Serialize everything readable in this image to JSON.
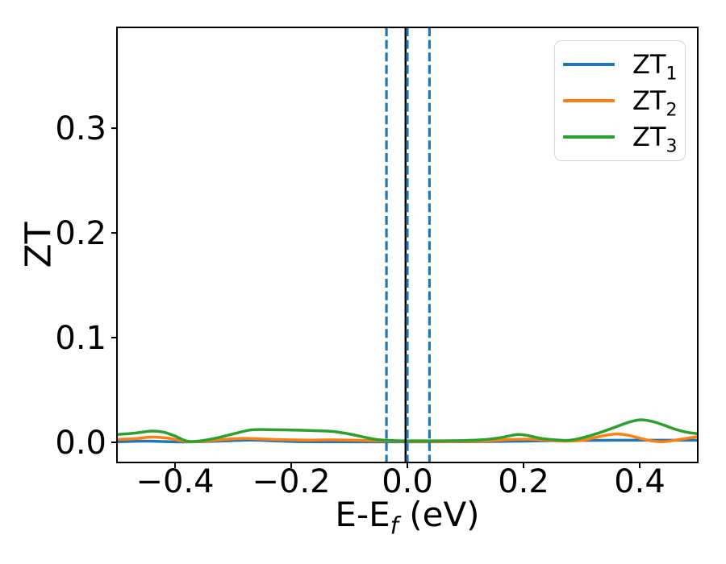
{
  "figure": {
    "background": "#ffffff",
    "text_color": "#000000"
  },
  "chart_data": {
    "type": "line",
    "title": "",
    "ylabel": "ZT",
    "xlabel_parts": {
      "prefix": "E-E",
      "sub": "f",
      "suffix": " (eV)"
    },
    "xlim": [
      -0.5,
      0.5
    ],
    "ylim": [
      -0.0192,
      0.3962
    ],
    "grid": false,
    "x_ticks": [
      {
        "value": -0.4,
        "label": "−0.4"
      },
      {
        "value": -0.2,
        "label": "−0.2"
      },
      {
        "value": 0.0,
        "label": "0.0"
      },
      {
        "value": 0.2,
        "label": "0.2"
      },
      {
        "value": 0.4,
        "label": "0.4"
      }
    ],
    "y_ticks": [
      {
        "value": 0.0,
        "label": "0.0"
      },
      {
        "value": 0.1,
        "label": "0.1"
      },
      {
        "value": 0.2,
        "label": "0.2"
      },
      {
        "value": 0.3,
        "label": "0.3"
      }
    ],
    "legend": {
      "position": "upper right",
      "entries": [
        {
          "label": "ZT",
          "sub": "1",
          "color": "#1f77b4"
        },
        {
          "label": "ZT",
          "sub": "2",
          "color": "#ff7f0e"
        },
        {
          "label": "ZT",
          "sub": "3",
          "color": "#2ca02c"
        }
      ]
    },
    "vlines": [
      {
        "x": -0.003,
        "color": "#000000",
        "style": "solid",
        "width": 2.5
      },
      {
        "x": -0.036,
        "color": "#1f77b4",
        "style": "dashed",
        "width": 3.2
      },
      {
        "x": 0.0,
        "color": "#1f77b4",
        "style": "dashed",
        "width": 3.2
      },
      {
        "x": 0.038,
        "color": "#1f77b4",
        "style": "dashed",
        "width": 3.2
      }
    ],
    "series": [
      {
        "name": "ZT1",
        "color": "#1f77b4",
        "linewidth": 3.5,
        "points": [
          [
            -0.5,
            0.0006
          ],
          [
            -0.45,
            0.0012
          ],
          [
            -0.4,
            0.0005
          ],
          [
            -0.36,
            0.0006
          ],
          [
            -0.31,
            0.0015
          ],
          [
            -0.27,
            0.0022
          ],
          [
            -0.23,
            0.0015
          ],
          [
            -0.19,
            0.0007
          ],
          [
            -0.14,
            0.0005
          ],
          [
            -0.08,
            0.0005
          ],
          [
            0.0,
            0.0005
          ],
          [
            0.08,
            0.0006
          ],
          [
            0.14,
            0.0008
          ],
          [
            0.2,
            0.0012
          ],
          [
            0.25,
            0.0016
          ],
          [
            0.3,
            0.0019
          ],
          [
            0.36,
            0.002
          ],
          [
            0.42,
            0.002
          ],
          [
            0.5,
            0.002
          ]
        ]
      },
      {
        "name": "ZT2",
        "color": "#ff7f0e",
        "linewidth": 3.5,
        "points": [
          [
            -0.5,
            0.0028
          ],
          [
            -0.47,
            0.0035
          ],
          [
            -0.44,
            0.005
          ],
          [
            -0.41,
            0.0038
          ],
          [
            -0.38,
            0.0008
          ],
          [
            -0.35,
            0.0012
          ],
          [
            -0.31,
            0.003
          ],
          [
            -0.28,
            0.0038
          ],
          [
            -0.25,
            0.0032
          ],
          [
            -0.21,
            0.0025
          ],
          [
            -0.17,
            0.0022
          ],
          [
            -0.13,
            0.0024
          ],
          [
            -0.09,
            0.002
          ],
          [
            -0.05,
            0.0015
          ],
          [
            0.0,
            0.001
          ],
          [
            0.05,
            0.0008
          ],
          [
            0.1,
            0.001
          ],
          [
            0.14,
            0.0015
          ],
          [
            0.18,
            0.0028
          ],
          [
            0.21,
            0.003
          ],
          [
            0.24,
            0.002
          ],
          [
            0.27,
            0.0012
          ],
          [
            0.3,
            0.0018
          ],
          [
            0.33,
            0.0055
          ],
          [
            0.36,
            0.008
          ],
          [
            0.38,
            0.0068
          ],
          [
            0.4,
            0.004
          ],
          [
            0.42,
            0.0015
          ],
          [
            0.44,
            0.0006
          ],
          [
            0.46,
            0.002
          ],
          [
            0.48,
            0.0038
          ],
          [
            0.5,
            0.0055
          ]
        ]
      },
      {
        "name": "ZT3",
        "color": "#2ca02c",
        "linewidth": 3.5,
        "points": [
          [
            -0.5,
            0.0075
          ],
          [
            -0.47,
            0.0088
          ],
          [
            -0.44,
            0.0108
          ],
          [
            -0.42,
            0.0098
          ],
          [
            -0.4,
            0.006
          ],
          [
            -0.38,
            0.0012
          ],
          [
            -0.36,
            0.0012
          ],
          [
            -0.33,
            0.004
          ],
          [
            -0.3,
            0.008
          ],
          [
            -0.27,
            0.0118
          ],
          [
            -0.24,
            0.0122
          ],
          [
            -0.2,
            0.0118
          ],
          [
            -0.16,
            0.0112
          ],
          [
            -0.13,
            0.0105
          ],
          [
            -0.1,
            0.008
          ],
          [
            -0.07,
            0.0045
          ],
          [
            -0.05,
            0.0025
          ],
          [
            -0.02,
            0.0016
          ],
          [
            0.02,
            0.0015
          ],
          [
            0.06,
            0.0015
          ],
          [
            0.1,
            0.0018
          ],
          [
            0.13,
            0.0025
          ],
          [
            0.16,
            0.0045
          ],
          [
            0.19,
            0.0075
          ],
          [
            0.21,
            0.0062
          ],
          [
            0.23,
            0.0038
          ],
          [
            0.26,
            0.0022
          ],
          [
            0.28,
            0.002
          ],
          [
            0.3,
            0.0042
          ],
          [
            0.33,
            0.009
          ],
          [
            0.36,
            0.015
          ],
          [
            0.38,
            0.019
          ],
          [
            0.4,
            0.0215
          ],
          [
            0.42,
            0.0202
          ],
          [
            0.44,
            0.0168
          ],
          [
            0.46,
            0.0128
          ],
          [
            0.48,
            0.0098
          ],
          [
            0.5,
            0.0082
          ]
        ]
      }
    ]
  }
}
